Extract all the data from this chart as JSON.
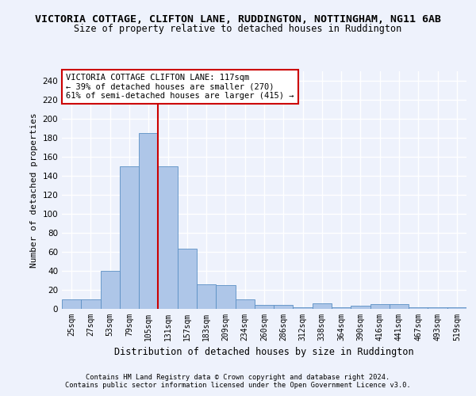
{
  "title": "VICTORIA COTTAGE, CLIFTON LANE, RUDDINGTON, NOTTINGHAM, NG11 6AB",
  "subtitle": "Size of property relative to detached houses in Ruddington",
  "xlabel": "Distribution of detached houses by size in Ruddington",
  "ylabel": "Number of detached properties",
  "categories": [
    "25sqm",
    "27sqm",
    "53sqm",
    "79sqm",
    "105sqm",
    "131sqm",
    "157sqm",
    "183sqm",
    "209sqm",
    "234sqm",
    "260sqm",
    "286sqm",
    "312sqm",
    "338sqm",
    "364sqm",
    "390sqm",
    "416sqm",
    "441sqm",
    "467sqm",
    "493sqm",
    "519sqm"
  ],
  "values": [
    10,
    10,
    40,
    150,
    185,
    150,
    63,
    26,
    25,
    10,
    4,
    4,
    2,
    6,
    2,
    3,
    5,
    5,
    2,
    2,
    2
  ],
  "bar_color": "#aec6e8",
  "bar_edge_color": "#5a8fc4",
  "vline_x": 4.5,
  "vline_color": "#cc0000",
  "annotation_text": "VICTORIA COTTAGE CLIFTON LANE: 117sqm\n← 39% of detached houses are smaller (270)\n61% of semi-detached houses are larger (415) →",
  "annotation_box_color": "#ffffff",
  "annotation_box_edge": "#cc0000",
  "ylim": [
    0,
    250
  ],
  "yticks": [
    0,
    20,
    40,
    60,
    80,
    100,
    120,
    140,
    160,
    180,
    200,
    220,
    240
  ],
  "footer1": "Contains HM Land Registry data © Crown copyright and database right 2024.",
  "footer2": "Contains public sector information licensed under the Open Government Licence v3.0.",
  "bg_color": "#eef2fc",
  "grid_color": "#ffffff",
  "title_fontsize": 9.5,
  "subtitle_fontsize": 8.5,
  "tick_fontsize": 7,
  "ylabel_fontsize": 8,
  "xlabel_fontsize": 8.5,
  "annotation_fontsize": 7.5,
  "footer_fontsize": 6.2
}
